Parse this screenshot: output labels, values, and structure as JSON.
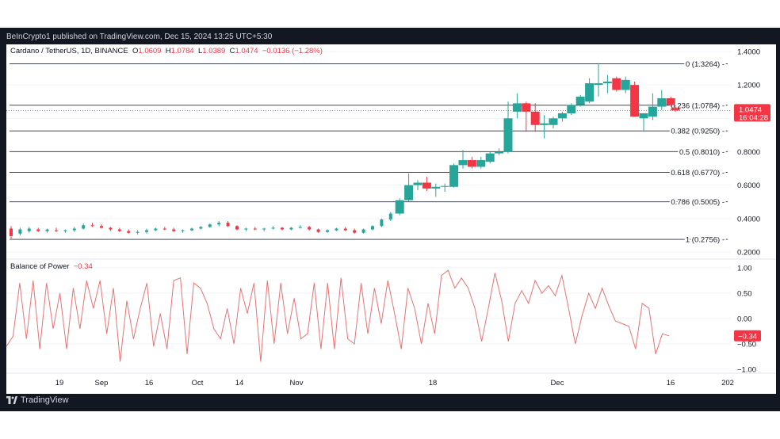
{
  "header": {
    "published": "BeInCrypto1 published on TradingView.com, Dec 15, 2024 13:25 UTC+5:30"
  },
  "legend": {
    "symbol": "Cardano / TetherUS, 1D, BINANCE",
    "o_label": "O",
    "o": "1.0609",
    "h_label": "H",
    "h": "1.0784",
    "l_label": "L",
    "l": "1.0389",
    "c_label": "C",
    "c": "1.0474",
    "change": "−0.0136 (−1.28%)"
  },
  "indicator": {
    "name": "Balance of Power",
    "value": "−0.34"
  },
  "price_tag": {
    "price": "1.0474",
    "countdown": "16:04:28"
  },
  "bop_tag": "−0.34",
  "footer": {
    "brand": "TradingView"
  },
  "colors": {
    "up": "#26a69a",
    "down": "#f23645",
    "bop_line": "#e57373",
    "grid": "#f0f3fa",
    "axis_text": "#131722"
  },
  "chart_data": [
    {
      "type": "candlestick",
      "title": "Cardano / TetherUS, 1D, BINANCE",
      "ylim": [
        0.16,
        1.45
      ],
      "y_ticks": [
        "1.4000",
        "1.2000",
        "1.0000",
        "0.8000",
        "0.6000",
        "0.4000",
        "0.2000"
      ],
      "x_ticks": [
        "19",
        "Sep",
        "16",
        "Oct",
        "14",
        "Nov",
        "18",
        "Dec",
        "16",
        "202"
      ],
      "fib_levels": [
        {
          "label": "0 (1.3264)",
          "value": 1.3264
        },
        {
          "label": "0.236 (1.0784)",
          "value": 1.0784
        },
        {
          "label": "0.382 (0.9250)",
          "value": 0.925
        },
        {
          "label": "0.5 (0.8010)",
          "value": 0.801
        },
        {
          "label": "0.618 (0.6770)",
          "value": 0.677
        },
        {
          "label": "0.786 (0.5005)",
          "value": 0.5005
        },
        {
          "label": "1 (0.2756)",
          "value": 0.2756
        }
      ],
      "series": [
        {
          "day": 0,
          "o": 0.34,
          "h": 0.355,
          "l": 0.28,
          "c": 0.295
        },
        {
          "day": 2,
          "o": 0.31,
          "h": 0.345,
          "l": 0.3,
          "c": 0.335
        },
        {
          "day": 4,
          "o": 0.325,
          "h": 0.35,
          "l": 0.315,
          "c": 0.34
        },
        {
          "day": 6,
          "o": 0.335,
          "h": 0.345,
          "l": 0.32,
          "c": 0.325
        },
        {
          "day": 8,
          "o": 0.325,
          "h": 0.34,
          "l": 0.315,
          "c": 0.335
        },
        {
          "day": 10,
          "o": 0.33,
          "h": 0.345,
          "l": 0.32,
          "c": 0.325
        },
        {
          "day": 12,
          "o": 0.325,
          "h": 0.335,
          "l": 0.315,
          "c": 0.33
        },
        {
          "day": 14,
          "o": 0.33,
          "h": 0.35,
          "l": 0.32,
          "c": 0.34
        },
        {
          "day": 16,
          "o": 0.34,
          "h": 0.37,
          "l": 0.335,
          "c": 0.36
        },
        {
          "day": 18,
          "o": 0.36,
          "h": 0.375,
          "l": 0.35,
          "c": 0.355
        },
        {
          "day": 20,
          "o": 0.355,
          "h": 0.365,
          "l": 0.34,
          "c": 0.345
        },
        {
          "day": 22,
          "o": 0.345,
          "h": 0.35,
          "l": 0.325,
          "c": 0.335
        },
        {
          "day": 24,
          "o": 0.335,
          "h": 0.345,
          "l": 0.32,
          "c": 0.325
        },
        {
          "day": 26,
          "o": 0.325,
          "h": 0.335,
          "l": 0.31,
          "c": 0.315
        },
        {
          "day": 28,
          "o": 0.315,
          "h": 0.33,
          "l": 0.305,
          "c": 0.32
        },
        {
          "day": 30,
          "o": 0.32,
          "h": 0.34,
          "l": 0.31,
          "c": 0.33
        },
        {
          "day": 32,
          "o": 0.33,
          "h": 0.345,
          "l": 0.325,
          "c": 0.34
        },
        {
          "day": 34,
          "o": 0.34,
          "h": 0.35,
          "l": 0.33,
          "c": 0.335
        },
        {
          "day": 36,
          "o": 0.335,
          "h": 0.345,
          "l": 0.32,
          "c": 0.325
        },
        {
          "day": 38,
          "o": 0.325,
          "h": 0.335,
          "l": 0.315,
          "c": 0.33
        },
        {
          "day": 40,
          "o": 0.33,
          "h": 0.345,
          "l": 0.325,
          "c": 0.34
        },
        {
          "day": 42,
          "o": 0.34,
          "h": 0.355,
          "l": 0.335,
          "c": 0.35
        },
        {
          "day": 44,
          "o": 0.35,
          "h": 0.37,
          "l": 0.345,
          "c": 0.365
        },
        {
          "day": 46,
          "o": 0.365,
          "h": 0.385,
          "l": 0.355,
          "c": 0.375
        },
        {
          "day": 48,
          "o": 0.375,
          "h": 0.385,
          "l": 0.35,
          "c": 0.355
        },
        {
          "day": 50,
          "o": 0.355,
          "h": 0.36,
          "l": 0.33,
          "c": 0.335
        },
        {
          "day": 52,
          "o": 0.335,
          "h": 0.345,
          "l": 0.325,
          "c": 0.34
        },
        {
          "day": 54,
          "o": 0.34,
          "h": 0.35,
          "l": 0.33,
          "c": 0.335
        },
        {
          "day": 56,
          "o": 0.335,
          "h": 0.345,
          "l": 0.325,
          "c": 0.34
        },
        {
          "day": 58,
          "o": 0.34,
          "h": 0.355,
          "l": 0.335,
          "c": 0.345
        },
        {
          "day": 60,
          "o": 0.345,
          "h": 0.35,
          "l": 0.33,
          "c": 0.335
        },
        {
          "day": 62,
          "o": 0.335,
          "h": 0.35,
          "l": 0.33,
          "c": 0.345
        },
        {
          "day": 64,
          "o": 0.345,
          "h": 0.36,
          "l": 0.34,
          "c": 0.35
        },
        {
          "day": 66,
          "o": 0.35,
          "h": 0.355,
          "l": 0.33,
          "c": 0.335
        },
        {
          "day": 68,
          "o": 0.335,
          "h": 0.34,
          "l": 0.315,
          "c": 0.32
        },
        {
          "day": 70,
          "o": 0.32,
          "h": 0.335,
          "l": 0.315,
          "c": 0.33
        },
        {
          "day": 72,
          "o": 0.33,
          "h": 0.345,
          "l": 0.325,
          "c": 0.34
        },
        {
          "day": 74,
          "o": 0.34,
          "h": 0.35,
          "l": 0.325,
          "c": 0.33
        },
        {
          "day": 76,
          "o": 0.33,
          "h": 0.34,
          "l": 0.31,
          "c": 0.315
        },
        {
          "day": 78,
          "o": 0.315,
          "h": 0.34,
          "l": 0.31,
          "c": 0.335
        },
        {
          "day": 80,
          "o": 0.335,
          "h": 0.36,
          "l": 0.33,
          "c": 0.355
        },
        {
          "day": 82,
          "o": 0.355,
          "h": 0.4,
          "l": 0.35,
          "c": 0.395
        },
        {
          "day": 84,
          "o": 0.395,
          "h": 0.44,
          "l": 0.385,
          "c": 0.43
        },
        {
          "day": 86,
          "o": 0.43,
          "h": 0.52,
          "l": 0.42,
          "c": 0.51
        },
        {
          "day": 88,
          "o": 0.51,
          "h": 0.67,
          "l": 0.5,
          "c": 0.6
        },
        {
          "day": 90,
          "o": 0.6,
          "h": 0.63,
          "l": 0.57,
          "c": 0.615
        },
        {
          "day": 92,
          "o": 0.615,
          "h": 0.65,
          "l": 0.565,
          "c": 0.58
        },
        {
          "day": 94,
          "o": 0.58,
          "h": 0.61,
          "l": 0.53,
          "c": 0.59
        },
        {
          "day": 96,
          "o": 0.59,
          "h": 0.61,
          "l": 0.56,
          "c": 0.595
        },
        {
          "day": 98,
          "o": 0.59,
          "h": 0.73,
          "l": 0.585,
          "c": 0.72
        },
        {
          "day": 100,
          "o": 0.72,
          "h": 0.81,
          "l": 0.7,
          "c": 0.75
        },
        {
          "day": 102,
          "o": 0.75,
          "h": 0.77,
          "l": 0.7,
          "c": 0.71
        },
        {
          "day": 104,
          "o": 0.71,
          "h": 0.77,
          "l": 0.7,
          "c": 0.75
        },
        {
          "day": 106,
          "o": 0.74,
          "h": 0.8,
          "l": 0.73,
          "c": 0.79
        },
        {
          "day": 108,
          "o": 0.79,
          "h": 0.82,
          "l": 0.78,
          "c": 0.8
        },
        {
          "day": 110,
          "o": 0.8,
          "h": 1.1,
          "l": 0.79,
          "c": 1.0
        },
        {
          "day": 112,
          "o": 1.04,
          "h": 1.15,
          "l": 1.0,
          "c": 1.09
        },
        {
          "day": 114,
          "o": 1.09,
          "h": 1.1,
          "l": 0.92,
          "c": 1.04
        },
        {
          "day": 116,
          "o": 1.04,
          "h": 1.09,
          "l": 0.92,
          "c": 0.96
        },
        {
          "day": 118,
          "o": 0.96,
          "h": 1.02,
          "l": 0.88,
          "c": 0.97
        },
        {
          "day": 120,
          "o": 0.96,
          "h": 1.01,
          "l": 0.94,
          "c": 1.0
        },
        {
          "day": 122,
          "o": 1.0,
          "h": 1.04,
          "l": 0.98,
          "c": 1.03
        },
        {
          "day": 124,
          "o": 1.03,
          "h": 1.09,
          "l": 1.02,
          "c": 1.08
        },
        {
          "day": 126,
          "o": 1.08,
          "h": 1.14,
          "l": 1.07,
          "c": 1.13
        },
        {
          "day": 128,
          "o": 1.1,
          "h": 1.24,
          "l": 1.09,
          "c": 1.21
        },
        {
          "day": 130,
          "o": 1.2,
          "h": 1.33,
          "l": 1.13,
          "c": 1.21
        },
        {
          "day": 132,
          "o": 1.21,
          "h": 1.26,
          "l": 1.15,
          "c": 1.22
        },
        {
          "day": 134,
          "o": 1.24,
          "h": 1.25,
          "l": 1.16,
          "c": 1.17
        },
        {
          "day": 136,
          "o": 1.17,
          "h": 1.25,
          "l": 1.15,
          "c": 1.23
        },
        {
          "day": 138,
          "o": 1.2,
          "h": 1.22,
          "l": 1.01,
          "c": 1.01
        },
        {
          "day": 140,
          "o": 1.0,
          "h": 1.03,
          "l": 0.92,
          "c": 1.03
        },
        {
          "day": 142,
          "o": 1.01,
          "h": 1.15,
          "l": 0.99,
          "c": 1.07
        },
        {
          "day": 144,
          "o": 1.07,
          "h": 1.17,
          "l": 1.05,
          "c": 1.12
        },
        {
          "day": 146,
          "o": 1.12,
          "h": 1.13,
          "l": 1.07,
          "c": 1.08
        },
        {
          "day": 147,
          "o": 1.0609,
          "h": 1.0784,
          "l": 1.0389,
          "c": 1.0474
        }
      ]
    },
    {
      "type": "line",
      "title": "Balance of Power",
      "ylim": [
        -1.0,
        1.0
      ],
      "y_ticks": [
        "1.00",
        "0.50",
        "0.00",
        "−0.50",
        "−1.00"
      ],
      "series": [
        {
          "name": "Balance of Power",
          "values": [
            -0.55,
            -0.35,
            0.7,
            -0.4,
            0.75,
            -0.6,
            0.7,
            -0.2,
            0.5,
            -0.6,
            0.6,
            -0.2,
            0.75,
            0.2,
            0.75,
            -0.3,
            0.6,
            -0.85,
            0.35,
            -0.4,
            0.2,
            0.7,
            -0.55,
            0.1,
            -0.6,
            0.75,
            0.8,
            -0.7,
            0.7,
            0.6,
            0.3,
            -0.2,
            -0.4,
            0.2,
            -0.5,
            0.6,
            0.1,
            0.7,
            -0.85,
            0.75,
            -0.5,
            0.7,
            -0.3,
            0.4,
            -0.4,
            -0.3,
            0.7,
            -0.6,
            0.7,
            -0.6,
            0.8,
            -0.4,
            -0.5,
            0.7,
            -0.3,
            0.6,
            -0.1,
            0.75,
            0.1,
            -0.6,
            0.6,
            0.2,
            -0.5,
            0.3,
            -0.3,
            0.85,
            0.95,
            0.6,
            0.8,
            0.6,
            0.2,
            -0.45,
            0.2,
            0.9,
            0.35,
            -0.45,
            0.3,
            0.55,
            0.3,
            0.75,
            0.5,
            0.65,
            0.45,
            0.85,
            0.2,
            -0.5,
            0.05,
            0.5,
            0.2,
            0.6,
            0.25,
            -0.05,
            -0.1,
            -0.15,
            -0.6,
            0.3,
            0.2,
            -0.7,
            -0.3,
            -0.34
          ]
        }
      ]
    }
  ]
}
